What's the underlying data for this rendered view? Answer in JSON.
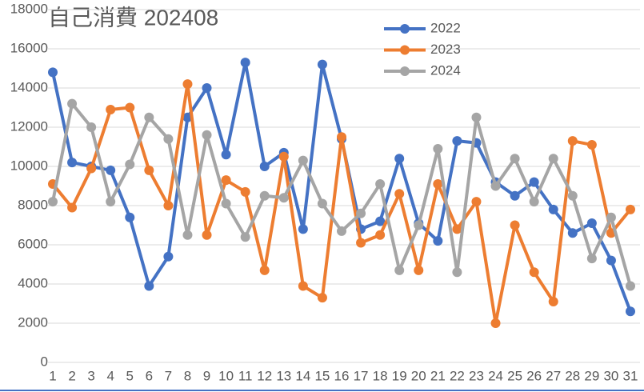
{
  "chart_data": {
    "type": "line",
    "title": "自己消費 202408",
    "x": [
      1,
      2,
      3,
      4,
      5,
      6,
      7,
      8,
      9,
      10,
      11,
      12,
      13,
      14,
      15,
      16,
      17,
      18,
      19,
      20,
      21,
      22,
      23,
      24,
      25,
      26,
      27,
      28,
      29,
      30,
      31
    ],
    "xlim": [
      1,
      31
    ],
    "series": [
      {
        "name": "2022",
        "color": "#4472c4",
        "values": [
          14800,
          10200,
          10000,
          9800,
          7400,
          3900,
          5400,
          12500,
          14000,
          10600,
          15300,
          10000,
          10700,
          6800,
          15200,
          11400,
          6800,
          7200,
          10400,
          7100,
          6200,
          11300,
          11200,
          9200,
          8500,
          9200,
          7800,
          6600,
          7100,
          5200,
          2600
        ]
      },
      {
        "name": "2023",
        "color": "#ed7d31",
        "values": [
          9100,
          7900,
          9900,
          12900,
          13000,
          9800,
          8000,
          14200,
          6500,
          9300,
          8700,
          4700,
          10500,
          3900,
          3300,
          11500,
          6100,
          6500,
          8600,
          4700,
          9100,
          6800,
          8200,
          2000,
          7000,
          4600,
          3100,
          11300,
          11100,
          6600,
          7800
        ]
      },
      {
        "name": "2024",
        "color": "#a5a5a5",
        "values": [
          8200,
          13200,
          12000,
          8200,
          10100,
          12500,
          11400,
          6500,
          11600,
          8100,
          6400,
          8500,
          8400,
          10300,
          8100,
          6700,
          7600,
          9100,
          4700,
          7000,
          10900,
          4600,
          12500,
          9000,
          10400,
          8200,
          10400,
          8500,
          5300,
          7400,
          3900
        ]
      }
    ],
    "ylim": [
      0,
      18000
    ],
    "yticks": [
      0,
      2000,
      4000,
      6000,
      8000,
      10000,
      12000,
      14000,
      16000,
      18000
    ],
    "grid": true
  }
}
